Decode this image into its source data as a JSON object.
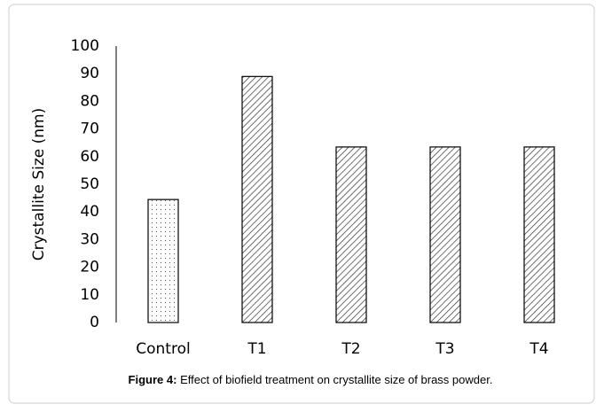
{
  "chart_data": {
    "type": "bar",
    "y_label": "Crystallite Size (nm)",
    "categories": [
      "Control",
      "T1",
      "T2",
      "T3",
      "T4"
    ],
    "values": [
      44.5,
      89,
      63.5,
      63.5,
      63.5
    ],
    "patterns": [
      "dots",
      "hatch",
      "hatch",
      "hatch",
      "hatch"
    ],
    "color": "#000000",
    "ylim": [
      0,
      100
    ],
    "yticks": [
      0,
      10,
      20,
      30,
      40,
      50,
      60,
      70,
      80,
      90,
      100
    ],
    "grid": false
  },
  "caption": {
    "label": "Figure 4:",
    "text": "Effect of biofield treatment on crystallite size of brass powder."
  }
}
